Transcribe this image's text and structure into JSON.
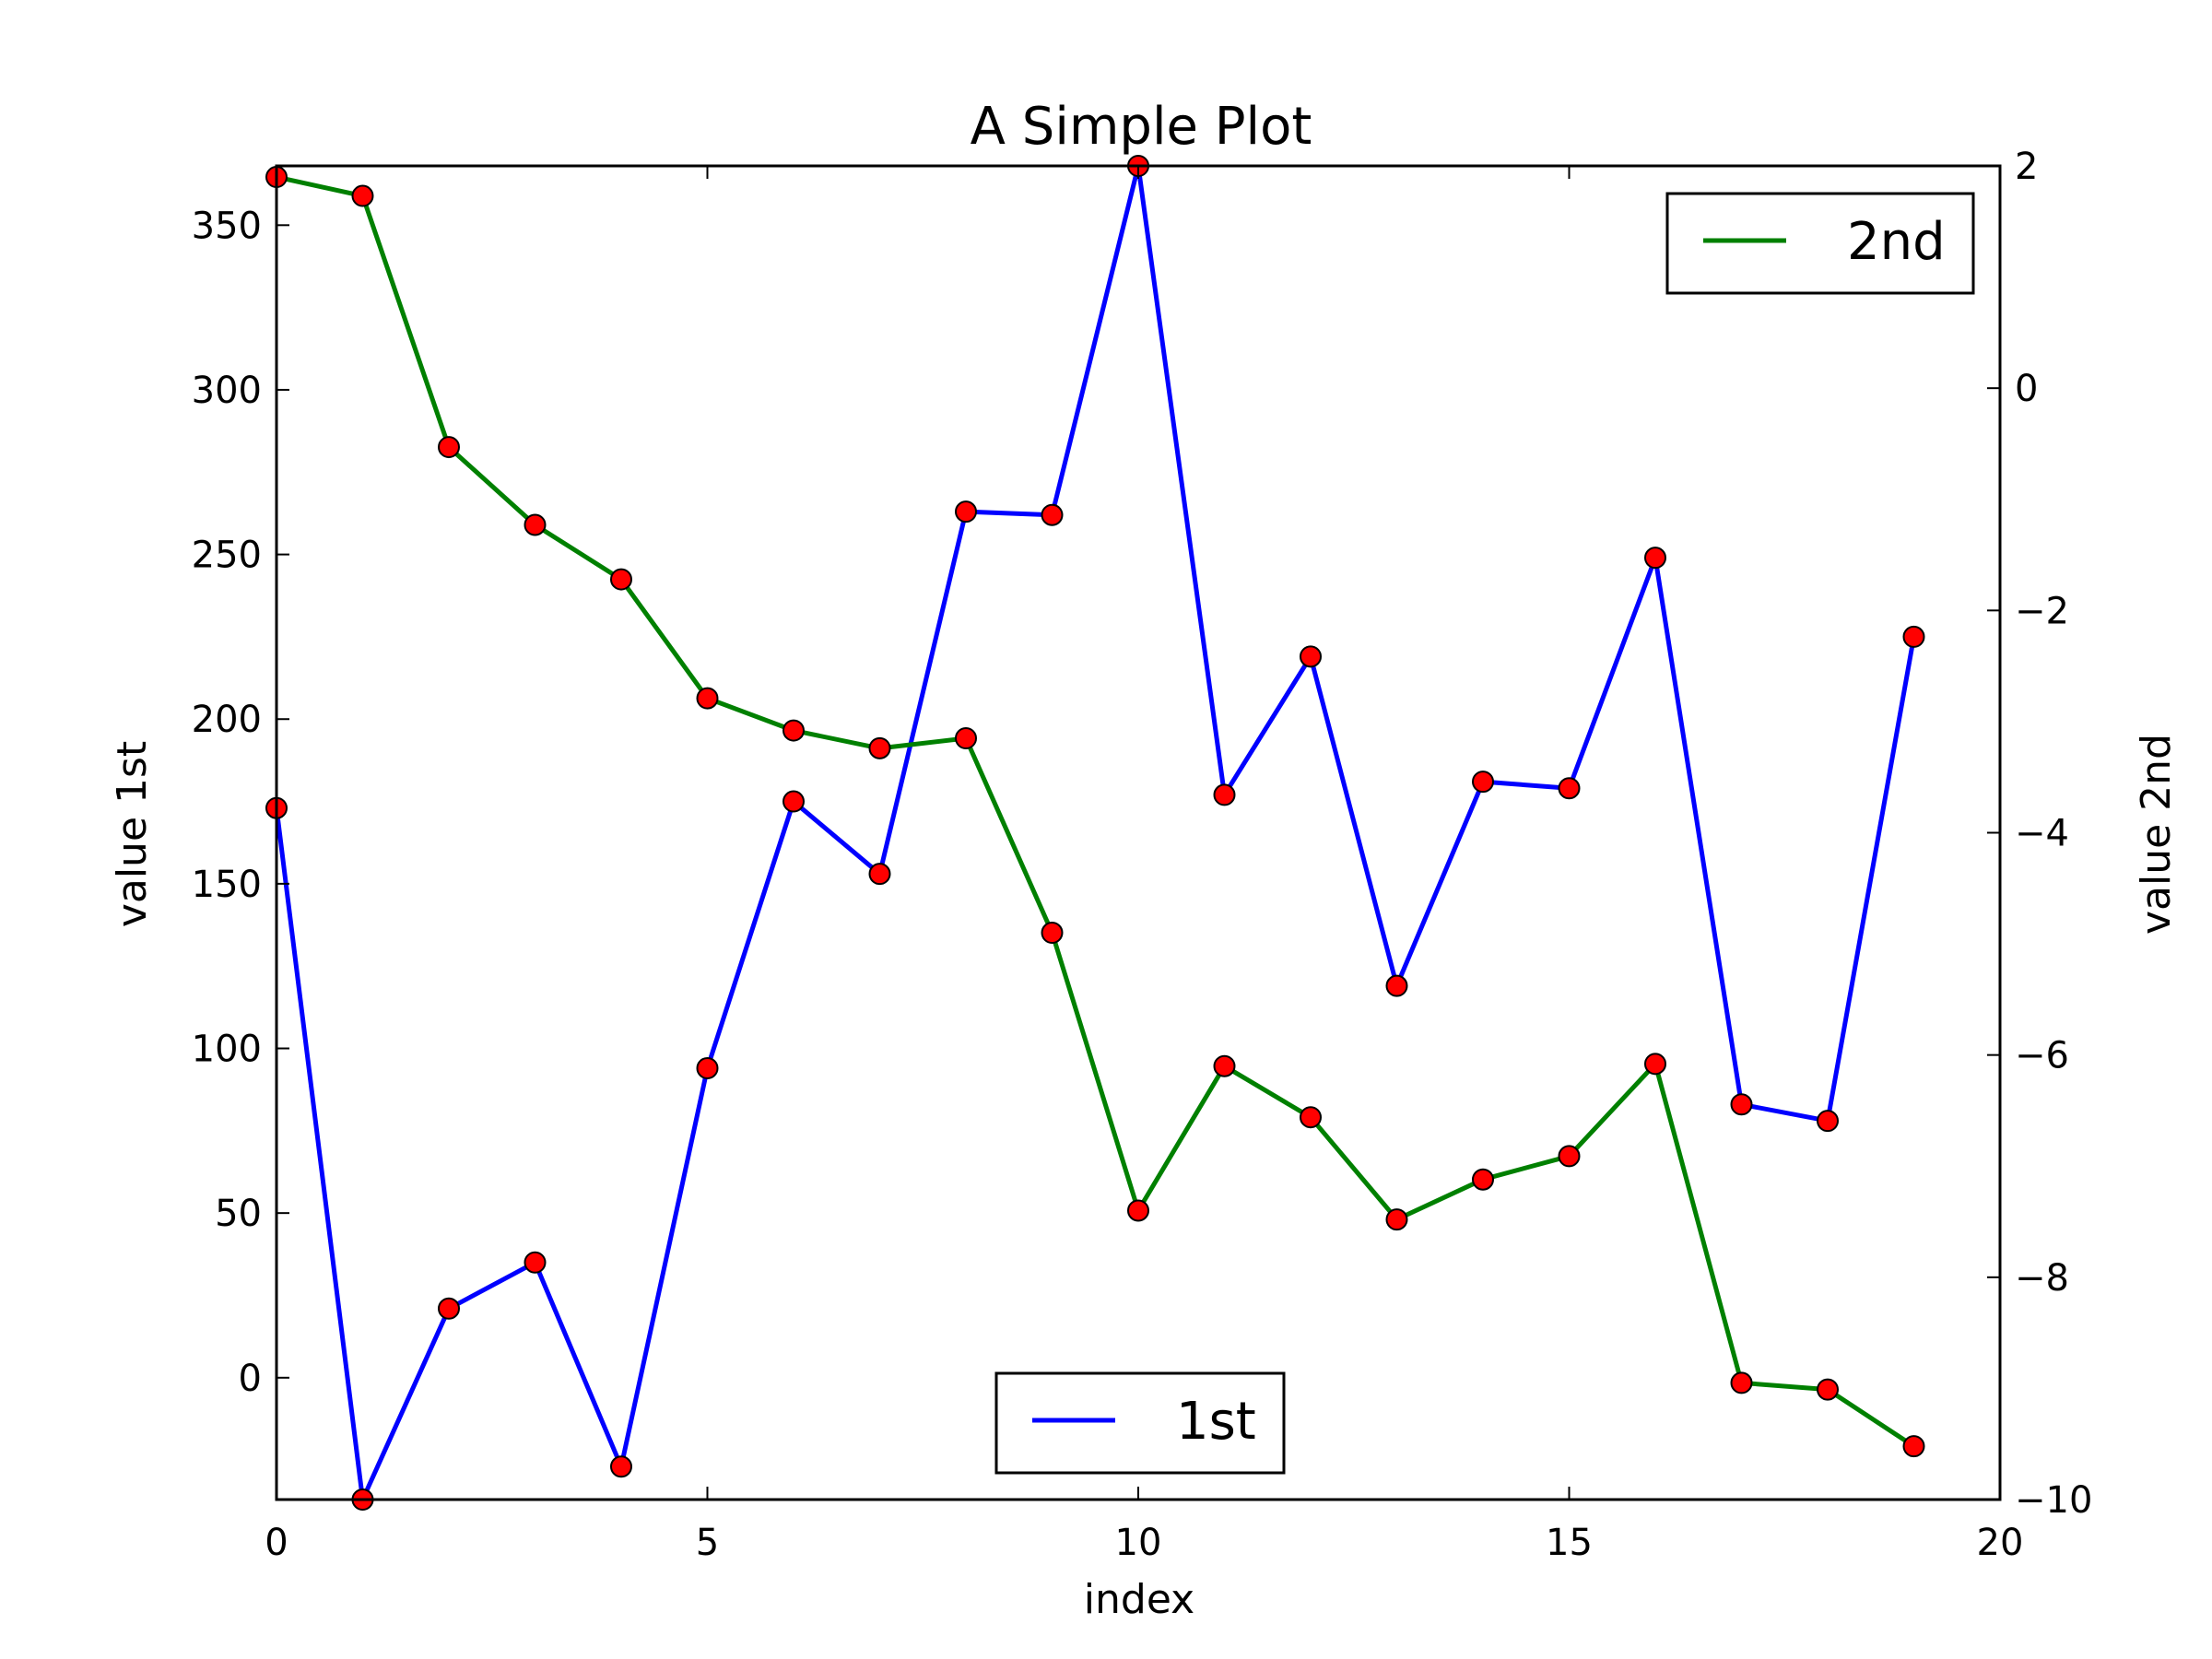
{
  "chart_data": {
    "type": "line",
    "title": "A Simple Plot",
    "xlabel": "index",
    "x": [
      0,
      1,
      2,
      3,
      4,
      5,
      6,
      7,
      8,
      9,
      10,
      11,
      12,
      13,
      14,
      15,
      16,
      17,
      18,
      19
    ],
    "xlim": [
      0,
      20
    ],
    "xticks": [
      0,
      5,
      10,
      15,
      20
    ],
    "left_axis": {
      "label": "value 1st",
      "ylim": [
        -37,
        368
      ],
      "ticks": [
        0,
        50,
        100,
        150,
        200,
        250,
        300,
        350
      ]
    },
    "right_axis": {
      "label": "value 2nd",
      "ylim": [
        -10,
        2
      ],
      "ticks": [
        2,
        0,
        -2,
        -4,
        -6,
        -8,
        -10
      ],
      "tick_labels": [
        "2",
        "0",
        "−2",
        "−4",
        "−6",
        "−8",
        "−10"
      ]
    },
    "series": [
      {
        "name": "1st",
        "axis": "left",
        "color": "#0000ff",
        "marker_color": "#ff0000",
        "values": [
          173,
          -37,
          21,
          35,
          -27,
          94,
          175,
          153,
          263,
          262,
          368,
          177,
          219,
          119,
          181,
          179,
          249,
          83,
          78,
          225
        ]
      },
      {
        "name": "2nd",
        "axis": "right",
        "color": "#008000",
        "marker_color": "#ff0000",
        "values": [
          1.9,
          1.73,
          -0.53,
          -1.23,
          -1.72,
          -2.79,
          -3.08,
          -3.24,
          -3.15,
          -4.9,
          -7.4,
          -6.1,
          -6.56,
          -7.48,
          -7.12,
          -6.91,
          -6.08,
          -8.95,
          -9.01,
          -9.52
        ]
      }
    ],
    "legends": [
      {
        "entry": "2nd",
        "placement": "top-right"
      },
      {
        "entry": "1st",
        "placement": "bottom-center"
      }
    ],
    "grid": false
  }
}
